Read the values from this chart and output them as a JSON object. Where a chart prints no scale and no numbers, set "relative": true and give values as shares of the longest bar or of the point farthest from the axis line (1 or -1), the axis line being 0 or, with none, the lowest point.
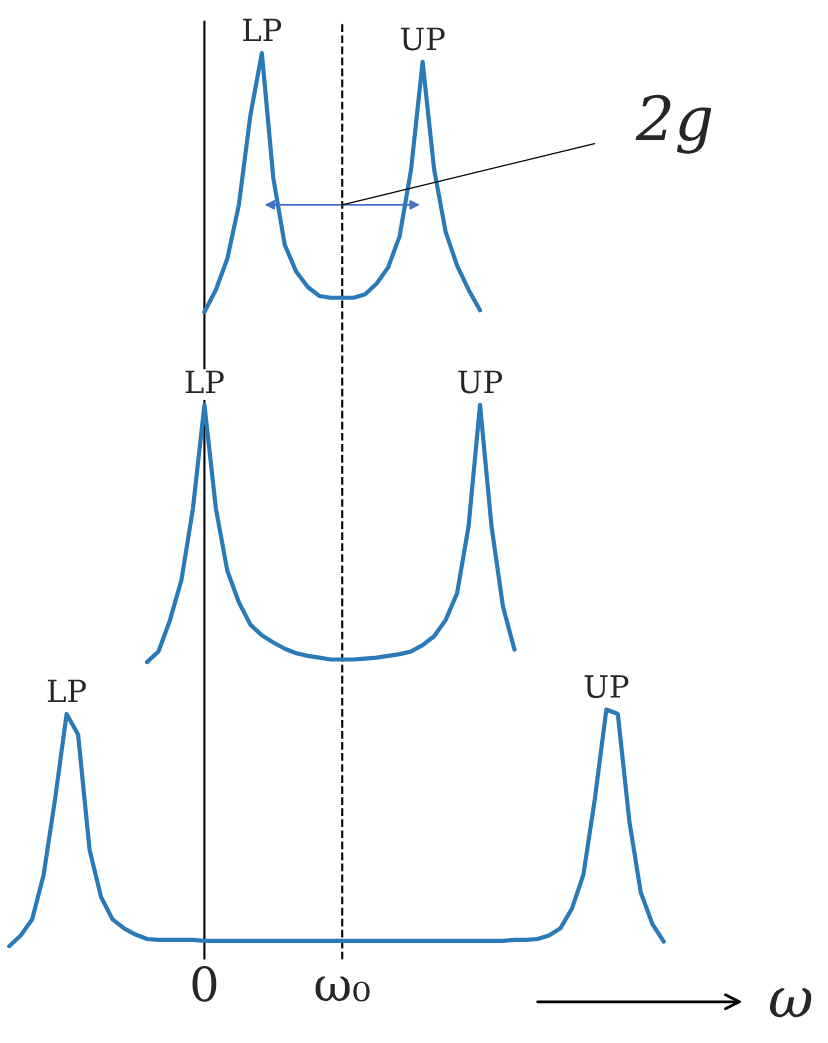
{
  "chart_data": {
    "type": "line",
    "relative": true,
    "xlabel": "ω",
    "categories": [
      null,
      null,
      null,
      null,
      null,
      null,
      null,
      null,
      null,
      null,
      null,
      null,
      null,
      null,
      null,
      null,
      null,
      "0",
      null,
      null,
      null,
      null,
      null,
      null,
      null,
      null,
      null,
      null,
      null,
      "ω₀",
      null,
      null,
      null,
      null,
      null,
      null,
      null,
      null,
      null,
      null,
      null,
      null,
      null,
      null,
      null,
      null,
      null,
      null,
      null,
      null,
      null,
      null,
      null,
      null,
      null,
      null,
      null,
      null
    ],
    "tick_labels": "x",
    "grid": false,
    "legend": false,
    "marker": "none",
    "line_style": "solid",
    "series": [
      {
        "color": "#2a7ab8",
        "values": [
          null,
          null,
          null,
          null,
          null,
          null,
          null,
          null,
          null,
          null,
          null,
          null,
          null,
          null,
          null,
          null,
          null,
          0.71,
          0.735,
          0.77,
          0.83,
          0.93,
          1,
          0.86,
          0.785,
          0.755,
          0.738,
          0.728,
          0.726,
          0.726,
          0.726,
          0.73,
          0.742,
          0.76,
          0.795,
          0.87,
          0.99,
          0.87,
          0.8,
          0.762,
          0.735,
          0.712,
          null,
          null,
          null,
          null,
          null,
          null,
          null,
          null,
          null,
          null,
          null,
          null,
          null,
          null,
          null,
          null
        ]
      },
      {
        "color": "#2a7ab8",
        "values": [
          null,
          null,
          null,
          null,
          null,
          null,
          null,
          null,
          null,
          null,
          null,
          null,
          0.318,
          0.33,
          0.365,
          0.41,
          0.49,
          0.606,
          0.49,
          0.42,
          0.385,
          0.36,
          0.348,
          0.34,
          0.333,
          0.328,
          0.325,
          0.323,
          0.321,
          0.321,
          0.321,
          0.322,
          0.323,
          0.325,
          0.327,
          0.33,
          0.337,
          0.347,
          0.365,
          0.395,
          0.47,
          0.606,
          0.47,
          0.38,
          0.332,
          null,
          null,
          null,
          null,
          null,
          null,
          null,
          null,
          null,
          null,
          null,
          null,
          null
        ]
      },
      {
        "color": "#2a7ab8",
        "values": [
          0,
          0.012,
          0.03,
          0.08,
          0.165,
          0.26,
          0.237,
          0.108,
          0.055,
          0.03,
          0.02,
          0.013,
          0.008,
          0.007,
          0.007,
          0.007,
          0.007,
          0.006,
          0.006,
          0.006,
          0.006,
          0.006,
          0.006,
          0.006,
          0.006,
          0.006,
          0.006,
          0.006,
          0.006,
          0.006,
          0.006,
          0.006,
          0.006,
          0.006,
          0.006,
          0.006,
          0.006,
          0.006,
          0.006,
          0.006,
          0.006,
          0.006,
          0.006,
          0.006,
          0.007,
          0.007,
          0.008,
          0.012,
          0.02,
          0.042,
          0.08,
          0.165,
          0.265,
          0.26,
          0.14,
          0.06,
          0.025,
          0.005
        ]
      }
    ],
    "ref_lines": [
      {
        "axis": "x",
        "value": "0",
        "color": "#000000",
        "line_style": "solid"
      },
      {
        "axis": "x",
        "value": "ω₀",
        "color": "#000000",
        "line_style": "dashed"
      }
    ],
    "annotations": [
      "LP",
      "UP",
      "LP",
      "UP",
      "LP",
      "UP",
      "2g"
    ]
  }
}
